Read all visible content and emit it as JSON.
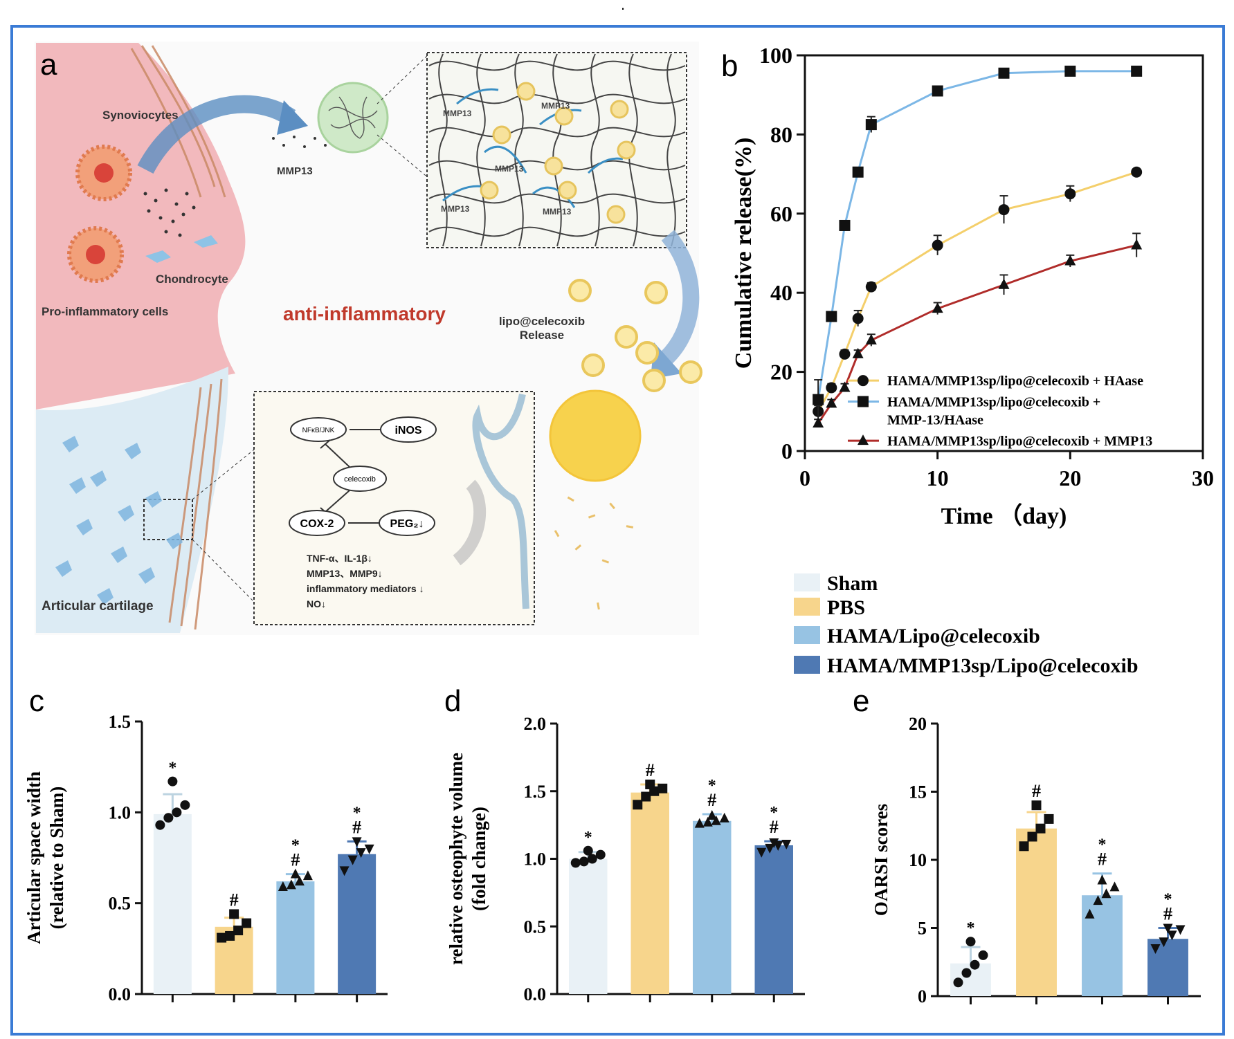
{
  "header_dot": ".",
  "colors": {
    "frame": "#3a7bd5",
    "sham": "#e9f1f6",
    "pbs": "#f7d58c",
    "hama_lipo": "#97c3e3",
    "hama_mmp": "#4f79b3",
    "line_haase": "#f4cf6b",
    "line_mmp_haase": "#7cb7e6",
    "line_mmp13": "#b02c2a",
    "schematic_pink": "#f2b9bd",
    "schematic_blue": "#dcebf4",
    "accent_red": "#c0392b"
  },
  "panel_a": {
    "letter": "a",
    "synoviocytes": "Synoviocytes",
    "mmp13": "MMP13",
    "chondrocyte": "Chondrocyte",
    "pro_inflammatory": "Pro-inflammatory cells",
    "anti_inflammatory": "anti-inflammatory",
    "lipo_release_1": "lipo@celecoxib",
    "lipo_release_2": "Release",
    "articular_cartilage": "Articular cartilage",
    "network_mmp_labels": [
      "MMP13",
      "MMP13",
      "MMP13",
      "MMP13",
      "MMP13"
    ],
    "pathway": {
      "nfkb": "NFκB/JNK",
      "inos": "iNOS",
      "celecoxib": "celecoxib",
      "cox2": "COX-2",
      "peg2": "PEG₂↓",
      "effects": [
        "TNF-α、IL-1β↓",
        "MMP13、MMP9↓",
        "inflammatory mediators ↓",
        "NO↓"
      ]
    }
  },
  "legend_groups": {
    "items": [
      {
        "label": "Sham",
        "color_key": "sham"
      },
      {
        "label": "PBS",
        "color_key": "pbs"
      },
      {
        "label": "HAMA/Lipo@celecoxib",
        "color_key": "hama_lipo"
      },
      {
        "label": "HAMA/MMP13sp/Lipo@celecoxib",
        "color_key": "hama_mmp"
      }
    ]
  },
  "chart_data": [
    {
      "panel": "b",
      "type": "line",
      "xlabel": "Time （day)",
      "ylabel": "Cumulative release(%)",
      "xlim": [
        0,
        30
      ],
      "ylim": [
        0,
        100
      ],
      "xticks": [
        0,
        10,
        20,
        30
      ],
      "yticks": [
        0,
        20,
        40,
        60,
        80,
        100
      ],
      "legend_position": "bottom-right",
      "series": [
        {
          "name": "HAMA/MMP13sp/lipo@celecoxib + HAase",
          "marker": "circle",
          "color_key": "line_haase",
          "x": [
            1,
            2,
            3,
            4,
            5,
            10,
            15,
            20,
            25
          ],
          "y": [
            10,
            16,
            24.5,
            33.5,
            41.5,
            52,
            61,
            65,
            70.5
          ],
          "err": [
            1.5,
            1,
            1,
            2,
            1,
            2.5,
            3.5,
            2,
            0.5
          ]
        },
        {
          "name": "HAMA/MMP13sp/lipo@celecoxib + MMP-13/HAase",
          "marker": "square",
          "color_key": "line_mmp_haase",
          "x": [
            1,
            2,
            3,
            4,
            5,
            10,
            15,
            20,
            25
          ],
          "y": [
            13,
            34,
            57,
            70.5,
            82.5,
            91,
            95.5,
            96,
            96
          ],
          "err": [
            5,
            1,
            1,
            1,
            2,
            1,
            1,
            1,
            0.5
          ]
        },
        {
          "name": "HAMA/MMP13sp/lipo@celecoxib + MMP13",
          "marker": "triangle",
          "color_key": "line_mmp13",
          "x": [
            1,
            2,
            3,
            4,
            5,
            10,
            15,
            20,
            25
          ],
          "y": [
            7,
            12,
            16,
            24.5,
            28,
            36,
            42,
            48,
            52
          ],
          "err": [
            1,
            1,
            1,
            1,
            1.5,
            1.5,
            2.5,
            1.5,
            3
          ]
        }
      ]
    },
    {
      "panel": "c",
      "type": "bar",
      "ylabel_line1": "Articular space width",
      "ylabel_line2": "(relative to Sham)",
      "ylim": [
        0,
        1.5
      ],
      "yticks": [
        "0.0",
        "0.5",
        "1.0",
        "1.5"
      ],
      "groups": [
        "Sham",
        "PBS",
        "HAMA/Lipo@celecoxib",
        "HAMA/MMP13sp/Lipo@celecoxib"
      ],
      "values": [
        0.99,
        0.37,
        0.62,
        0.77
      ],
      "errors": [
        0.11,
        0.05,
        0.04,
        0.07
      ],
      "points": [
        [
          0.93,
          0.97,
          1.0,
          1.04,
          1.17
        ],
        [
          0.31,
          0.32,
          0.35,
          0.39,
          0.44
        ],
        [
          0.59,
          0.6,
          0.62,
          0.65,
          0.66
        ],
        [
          0.68,
          0.74,
          0.78,
          0.8,
          0.84
        ]
      ],
      "markers": [
        "circle",
        "square",
        "triangle",
        "triangle-down"
      ],
      "annotations": [
        [
          "*"
        ],
        [
          "#"
        ],
        [
          "*",
          "#"
        ],
        [
          "*",
          "#"
        ]
      ]
    },
    {
      "panel": "d",
      "type": "bar",
      "ylabel_line1": "relative osteophyte volume",
      "ylabel_line2": "(fold change)",
      "ylim": [
        0,
        2.0
      ],
      "yticks": [
        "0.0",
        "0.5",
        "1.0",
        "1.5",
        "2.0"
      ],
      "groups": [
        "Sham",
        "PBS",
        "HAMA/Lipo@celecoxib",
        "HAMA/MMP13sp/Lipo@celecoxib"
      ],
      "values": [
        1.0,
        1.49,
        1.28,
        1.1
      ],
      "errors": [
        0.05,
        0.06,
        0.05,
        0.03
      ],
      "points": [
        [
          0.97,
          0.98,
          1.0,
          1.03,
          1.06
        ],
        [
          1.4,
          1.46,
          1.5,
          1.52,
          1.55
        ],
        [
          1.26,
          1.27,
          1.28,
          1.3,
          1.32
        ],
        [
          1.05,
          1.08,
          1.1,
          1.11,
          1.12
        ]
      ],
      "markers": [
        "circle",
        "square",
        "triangle",
        "triangle-down"
      ],
      "annotations": [
        [
          "*"
        ],
        [
          "#"
        ],
        [
          "*",
          "#"
        ],
        [
          "*",
          "#"
        ]
      ]
    },
    {
      "panel": "e",
      "type": "bar",
      "ylabel_line1": "OARSI scores",
      "ylabel_line2": "",
      "ylim": [
        0,
        20
      ],
      "yticks": [
        "0",
        "5",
        "10",
        "15",
        "20"
      ],
      "groups": [
        "Sham",
        "PBS",
        "HAMA/Lipo@celecoxib",
        "HAMA/MMP13sp/Lipo@celecoxib"
      ],
      "values": [
        2.4,
        12.3,
        7.4,
        4.2
      ],
      "errors": [
        1.2,
        1.2,
        1.6,
        0.8
      ],
      "points": [
        [
          1.0,
          1.7,
          2.3,
          3.0,
          4.0
        ],
        [
          11.0,
          11.7,
          12.3,
          13.0,
          14.0
        ],
        [
          6.0,
          7.0,
          7.5,
          8.0,
          8.5
        ],
        [
          3.5,
          4.0,
          4.5,
          4.9,
          5.0
        ]
      ],
      "markers": [
        "circle",
        "square",
        "triangle",
        "triangle-down"
      ],
      "annotations": [
        [
          "*"
        ],
        [
          "#"
        ],
        [
          "*",
          "#"
        ],
        [
          "*",
          "#"
        ]
      ]
    }
  ]
}
